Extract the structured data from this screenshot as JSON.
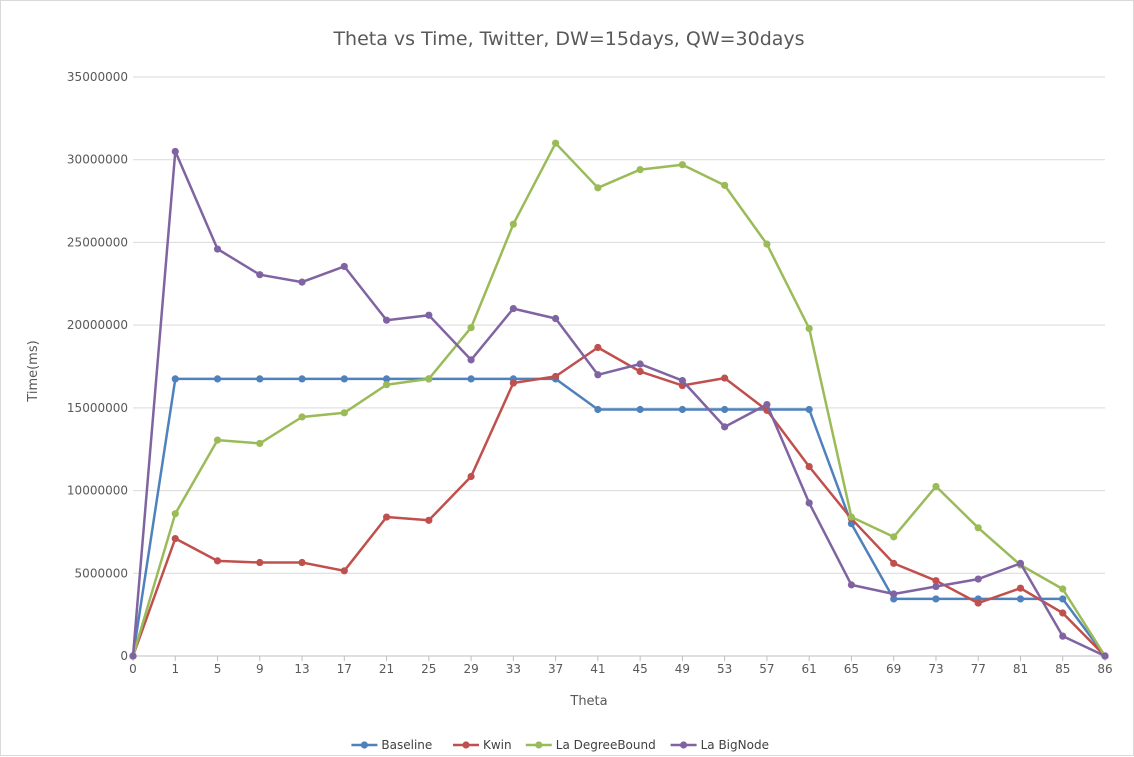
{
  "chart_data": {
    "type": "line",
    "title": "Theta vs Time, Twitter, DW=15days, QW=30days",
    "xlabel": "Theta",
    "ylabel": "Time(ms)",
    "ylim": [
      0,
      35000000
    ],
    "yticks": [
      "0",
      "5000000",
      "10000000",
      "15000000",
      "20000000",
      "25000000",
      "30000000",
      "35000000"
    ],
    "categories": [
      "0",
      "1",
      "5",
      "9",
      "13",
      "17",
      "21",
      "25",
      "29",
      "33",
      "37",
      "41",
      "45",
      "49",
      "53",
      "57",
      "61",
      "65",
      "69",
      "73",
      "77",
      "81",
      "85",
      "86"
    ],
    "grid": true,
    "legend": "bottom",
    "series": [
      {
        "name": "Baseline",
        "color": "#4f81bd",
        "values": [
          0,
          16750000,
          16750000,
          16750000,
          16750000,
          16750000,
          16750000,
          16750000,
          16750000,
          16750000,
          16750000,
          14900000,
          14900000,
          14900000,
          14900000,
          14900000,
          14900000,
          8000000,
          3450000,
          3450000,
          3450000,
          3450000,
          3450000,
          0
        ]
      },
      {
        "name": "Kwin",
        "color": "#c0504d",
        "values": [
          0,
          7100000,
          5750000,
          5650000,
          5650000,
          5150000,
          8400000,
          8200000,
          10850000,
          16500000,
          16900000,
          18650000,
          17200000,
          16350000,
          16800000,
          14850000,
          11450000,
          8300000,
          5600000,
          4550000,
          3200000,
          4100000,
          2600000,
          0
        ]
      },
      {
        "name": "La DegreeBound",
        "color": "#9bbb59",
        "values": [
          0,
          8600000,
          13050000,
          12850000,
          14450000,
          14700000,
          16400000,
          16750000,
          19850000,
          26100000,
          31000000,
          28300000,
          29400000,
          29700000,
          28450000,
          24900000,
          19800000,
          8400000,
          7200000,
          10250000,
          7750000,
          5500000,
          4050000,
          0
        ]
      },
      {
        "name": "La BigNode",
        "color": "#8064a2",
        "values": [
          0,
          30500000,
          24600000,
          23050000,
          22600000,
          23550000,
          20300000,
          20600000,
          17900000,
          21000000,
          20400000,
          17000000,
          17650000,
          16650000,
          13850000,
          15200000,
          9250000,
          4300000,
          3750000,
          4200000,
          4650000,
          5600000,
          1200000,
          0
        ]
      }
    ]
  }
}
